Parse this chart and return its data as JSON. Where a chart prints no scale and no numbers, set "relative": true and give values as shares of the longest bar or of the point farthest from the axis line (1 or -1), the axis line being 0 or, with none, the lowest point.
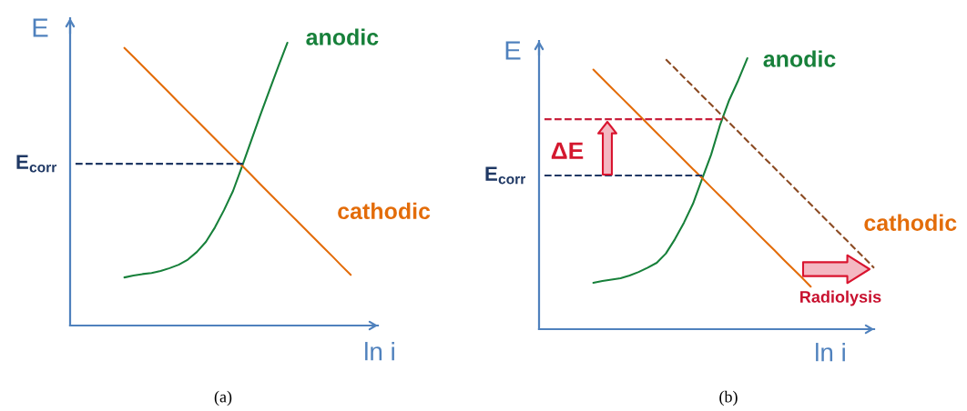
{
  "chart_data": [
    {
      "type": "line",
      "relative": true,
      "ylabel": "E",
      "xlabel": "ln i",
      "categories": [
        null,
        null,
        null,
        null,
        null,
        null,
        null,
        null,
        null,
        null,
        null,
        null,
        null,
        null,
        null,
        null,
        null,
        null,
        null,
        null,
        null,
        null,
        null,
        null,
        null,
        null,
        null,
        null,
        null,
        null,
        null,
        null,
        null,
        null,
        null
      ],
      "series": [
        {
          "name": "anodic",
          "color": "#17803a",
          "values": [
            null,
            null,
            null,
            null,
            null,
            null,
            0.17,
            0.177,
            0.182,
            0.186,
            0.193,
            0.203,
            0.215,
            0.233,
            0.26,
            0.296,
            0.347,
            0.408,
            0.476,
            0.563,
            0.653,
            0.743,
            0.83,
            0.916,
            1.0,
            null,
            null,
            null,
            null,
            null,
            null,
            null,
            null,
            null,
            null
          ]
        },
        {
          "name": "cathodic",
          "color": "#e36c09",
          "values": [
            null,
            null,
            null,
            null,
            null,
            null,
            0.982,
            0.95,
            0.918,
            0.886,
            0.854,
            0.822,
            0.789,
            0.757,
            0.725,
            0.693,
            0.661,
            0.629,
            0.597,
            0.565,
            0.533,
            0.5,
            0.468,
            0.436,
            0.404,
            0.372,
            0.34,
            0.308,
            0.276,
            0.244,
            0.211,
            0.179,
            null,
            null,
            null
          ]
        }
      ],
      "ref_lines": [
        {
          "axis": "y",
          "value": 0.572,
          "label": "E$_{corr}$",
          "color": "#1f3864",
          "line_style": "dashed"
        }
      ],
      "annotations": [
        "(a)"
      ]
    },
    {
      "type": "line",
      "relative": true,
      "ylabel": "E",
      "xlabel": "ln i",
      "categories": [
        null,
        null,
        null,
        null,
        null,
        null,
        null,
        null,
        null,
        null,
        null,
        null,
        null,
        null,
        null,
        null,
        null,
        null,
        null,
        null,
        null,
        null,
        null,
        null,
        null,
        null,
        null,
        null,
        null,
        null,
        null,
        null,
        null,
        null,
        null,
        null,
        null,
        null
      ],
      "series": [
        {
          "name": "anodic",
          "color": "#17803a",
          "values": [
            null,
            null,
            null,
            null,
            null,
            null,
            0.171,
            0.178,
            0.183,
            0.188,
            0.198,
            0.211,
            0.227,
            0.245,
            0.279,
            0.332,
            0.393,
            0.463,
            0.554,
            0.644,
            0.755,
            0.846,
            0.919,
            1.0,
            null,
            null,
            null,
            null,
            null,
            null,
            null,
            null,
            null,
            null,
            null,
            null,
            null,
            null
          ]
        },
        {
          "name": "cathodic",
          "color": "#e36c09",
          "values": [
            null,
            null,
            null,
            null,
            null,
            null,
            0.958,
            0.925,
            0.891,
            0.858,
            0.825,
            0.791,
            0.758,
            0.724,
            0.691,
            0.658,
            0.624,
            0.591,
            0.558,
            0.524,
            0.491,
            0.458,
            0.424,
            0.391,
            0.357,
            0.324,
            0.291,
            0.257,
            0.224,
            0.191,
            0.157,
            null,
            null,
            null,
            null,
            null,
            null,
            null
          ]
        },
        {
          "color": "#8b4a22",
          "line_style": "dashed",
          "values": [
            null,
            null,
            null,
            null,
            null,
            null,
            null,
            null,
            null,
            null,
            null,
            null,
            null,
            null,
            0.996,
            0.963,
            0.929,
            0.896,
            0.862,
            0.829,
            0.795,
            0.762,
            0.729,
            0.695,
            0.662,
            0.628,
            0.595,
            0.561,
            0.528,
            0.494,
            0.461,
            0.427,
            0.394,
            0.36,
            0.327,
            0.293,
            0.26,
            0.226
          ]
        }
      ],
      "ref_lines": [
        {
          "axis": "y",
          "value": 0.567,
          "label": "E$_{corr}$",
          "color": "#1f3864",
          "line_style": "dashed"
        },
        {
          "axis": "y",
          "value": 0.775,
          "color": "#c8203c",
          "line_style": "dashed"
        }
      ],
      "annotations": [
        "ΔE",
        "Radiolysis",
        "(b)"
      ]
    }
  ]
}
